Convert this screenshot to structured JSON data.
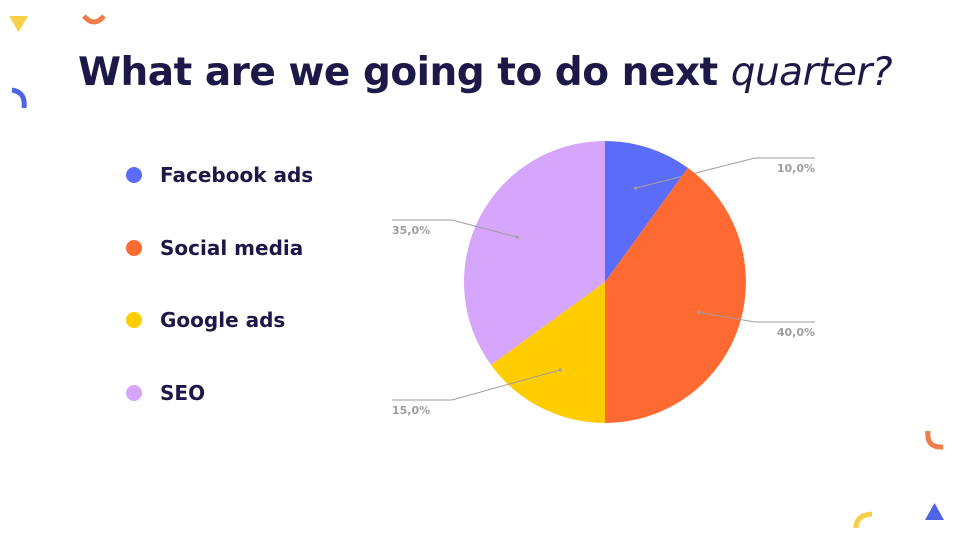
{
  "slide": {
    "title_main": "What are we going to do next ",
    "title_emphasis": "quarter?"
  },
  "colors": {
    "title": "#1c1847",
    "facebook": "#5b6cf9",
    "social": "#ff6a33",
    "google": "#ffcc00",
    "seo": "#d5a6fc",
    "leader": "#9e9e9e",
    "deco_yellow": "#f6d046",
    "deco_orange": "#ef7d4b",
    "deco_blue": "#4f63e6"
  },
  "chart_data": {
    "type": "pie",
    "legend": "left",
    "start_angle_deg": 0,
    "direction": "clockwise",
    "categories": [
      "Facebook ads",
      "Social media",
      "Google ads",
      "SEO"
    ],
    "values": [
      10.0,
      40.0,
      15.0,
      35.0
    ],
    "data_labels": [
      "10,0%",
      "40,0%",
      "15,0%",
      "35,0%"
    ],
    "colors": [
      "#5b6cf9",
      "#ff6a33",
      "#ffcc00",
      "#d5a6fc"
    ]
  }
}
